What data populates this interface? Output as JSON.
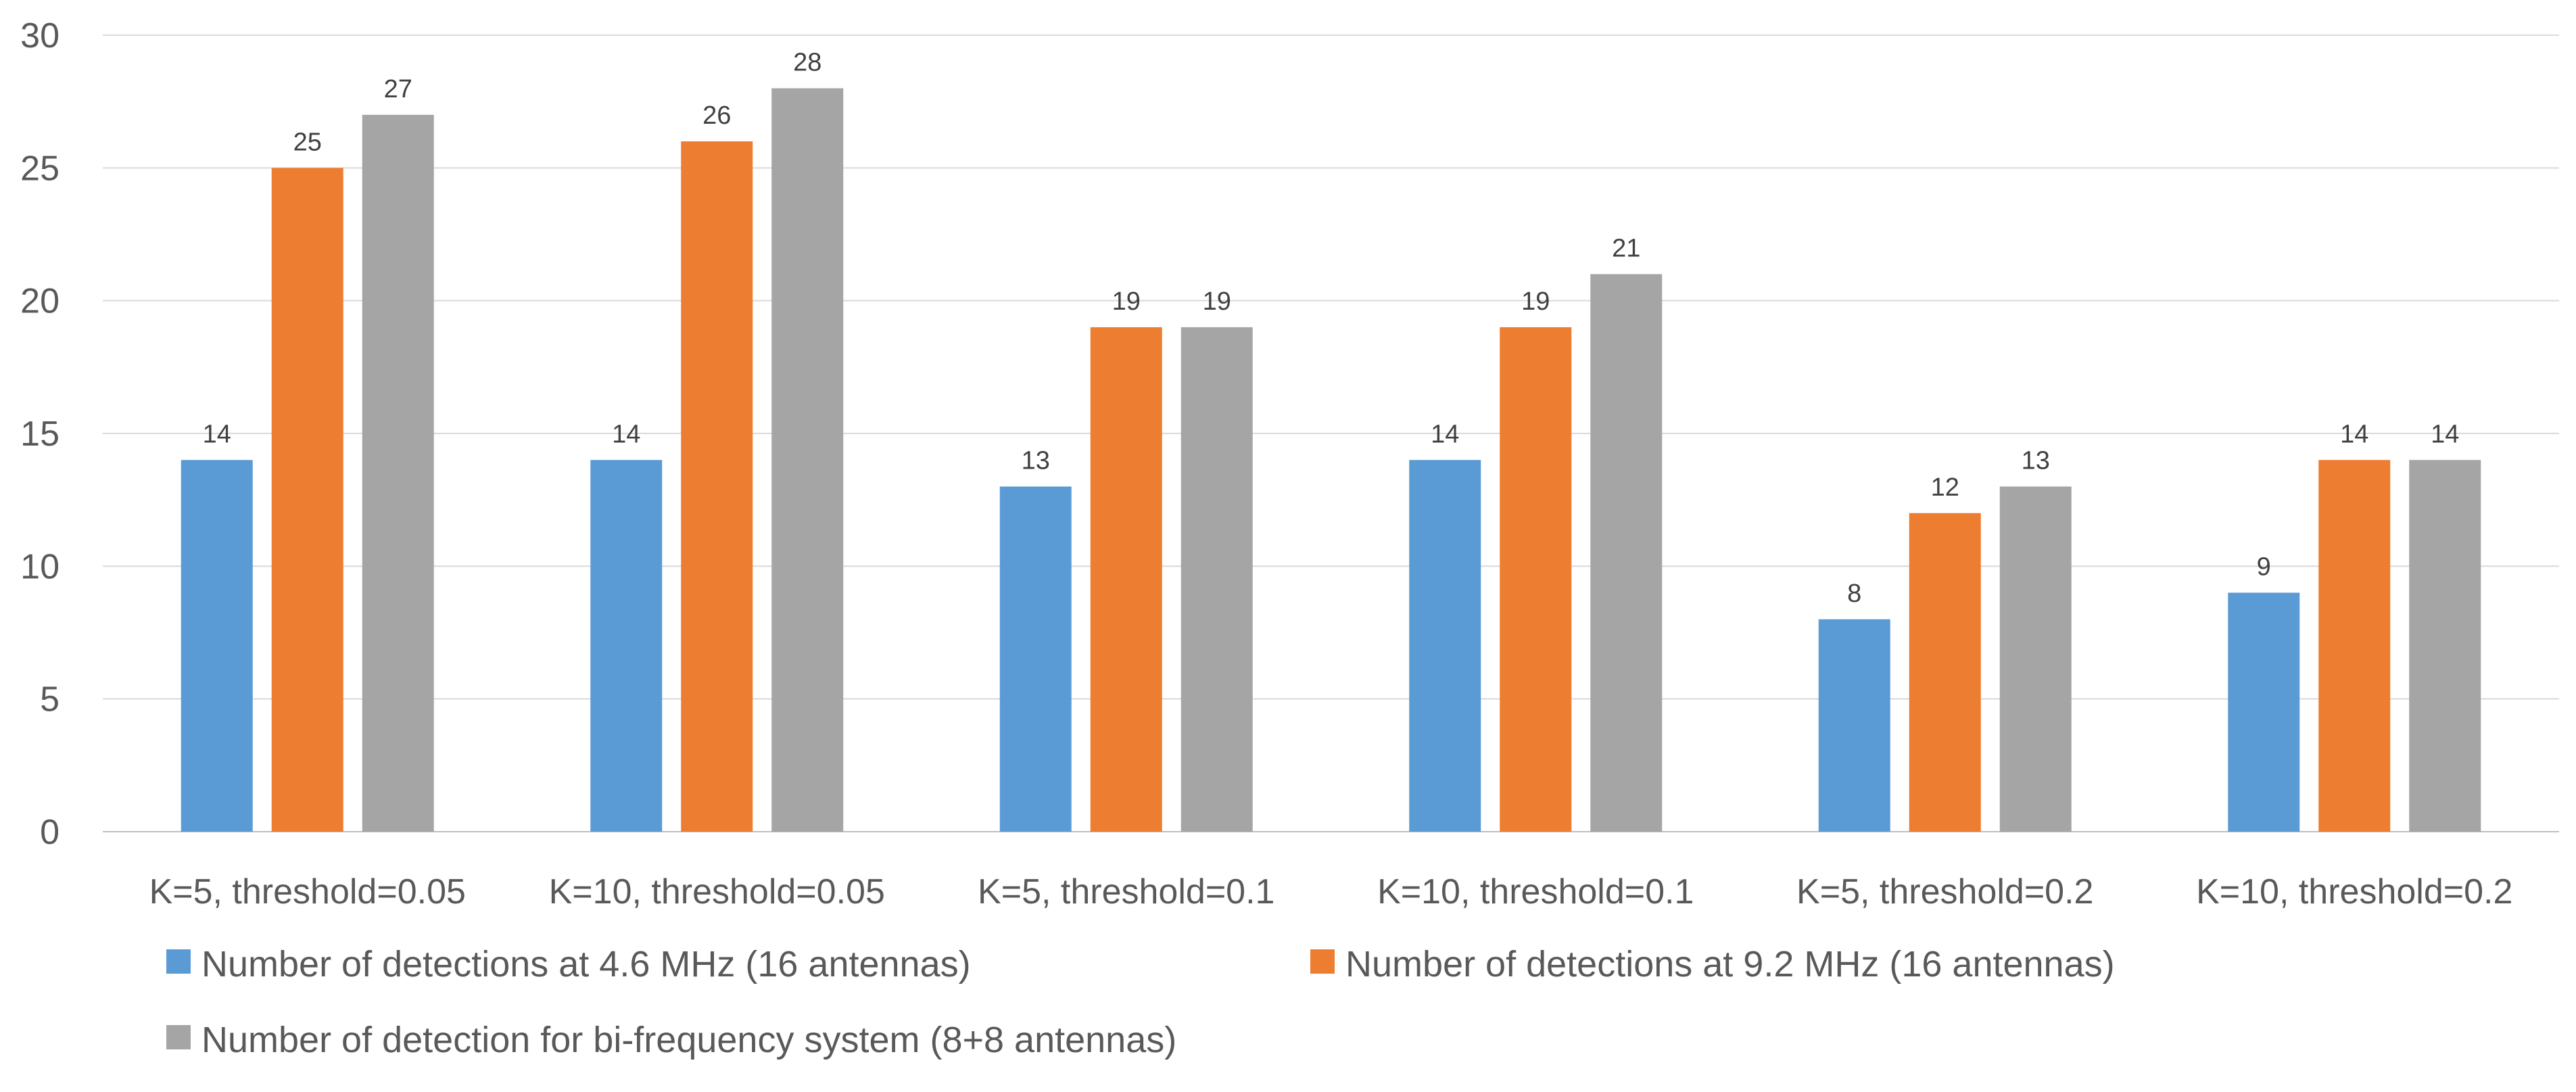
{
  "chart_data": {
    "type": "bar",
    "title": "",
    "xlabel": "",
    "ylabel": "",
    "ylim": [
      0,
      30
    ],
    "yticks": [
      0,
      5,
      10,
      15,
      20,
      25,
      30
    ],
    "grid": true,
    "legend_position": "bottom",
    "categories": [
      "K=5, threshold=0.05",
      "K=10, threshold=0.05",
      "K=5, threshold=0.1",
      "K=10, threshold=0.1",
      "K=5, threshold=0.2",
      "K=10, threshold=0.2"
    ],
    "series": [
      {
        "name": "Number of detections at 4.6 MHz (16 antennas)",
        "color": "#5b9bd5",
        "values": [
          14,
          14,
          13,
          14,
          8,
          9
        ]
      },
      {
        "name": "Number of detections at 9.2 MHz (16 antennas)",
        "color": "#ed7d31",
        "values": [
          25,
          26,
          19,
          19,
          12,
          14
        ]
      },
      {
        "name": "Number of detection for bi-frequency system (8+8 antennas)",
        "color": "#a5a5a5",
        "values": [
          27,
          28,
          19,
          21,
          13,
          14
        ]
      }
    ]
  }
}
